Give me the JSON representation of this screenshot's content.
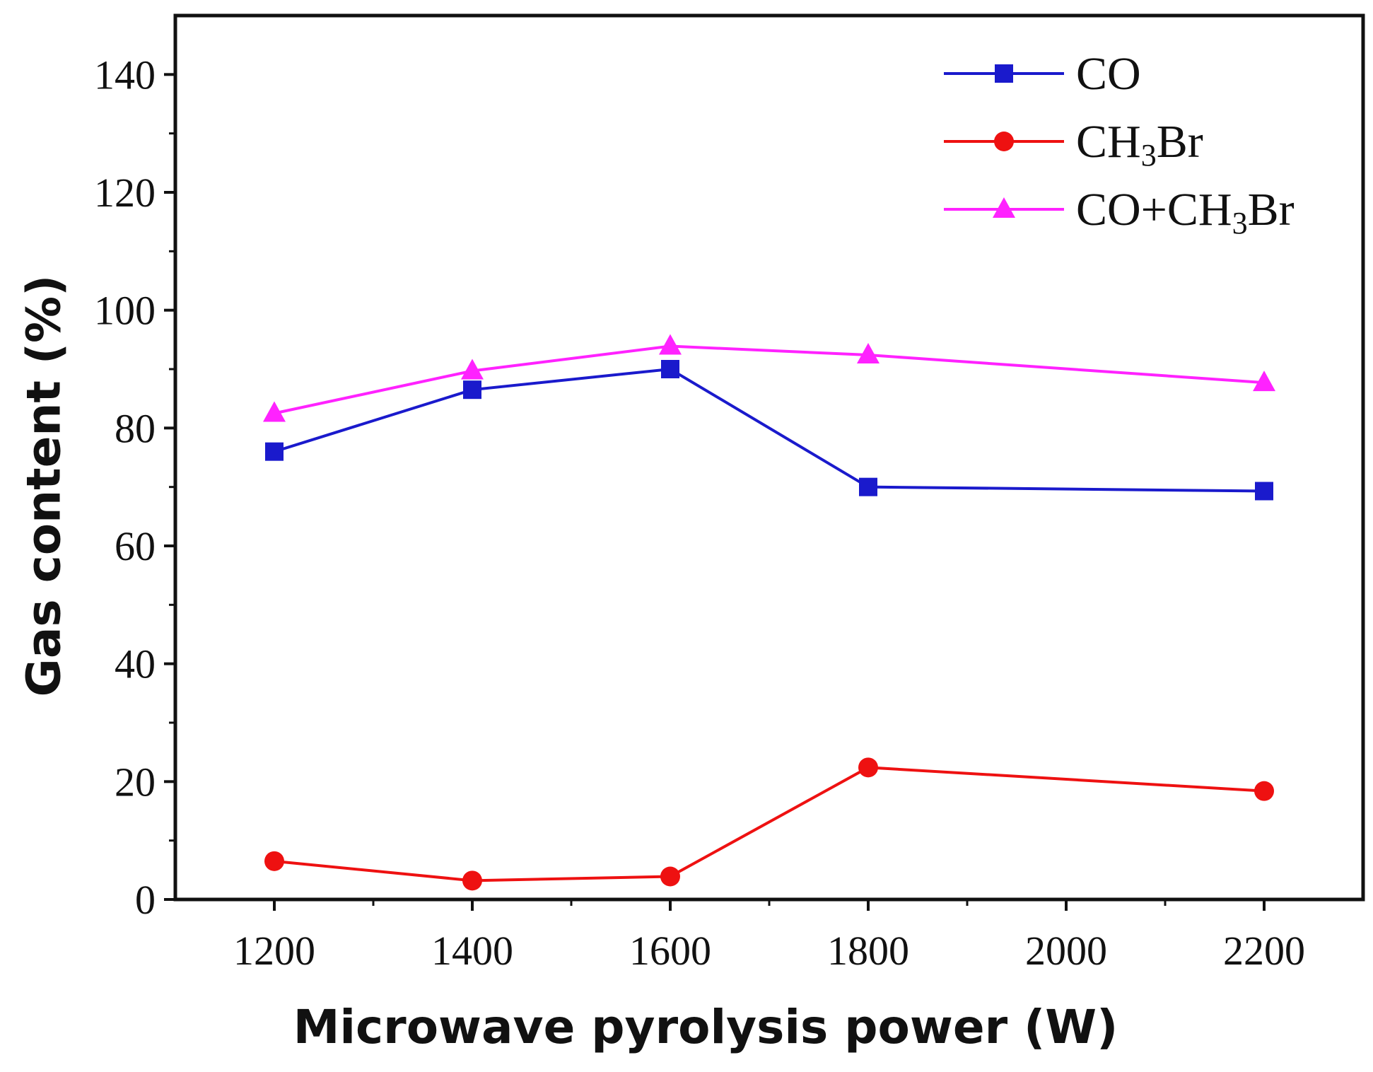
{
  "chart_data": {
    "type": "line",
    "xlabel": "Microwave pyrolysis power (W)",
    "ylabel": "Gas content (%)",
    "xlim": [
      1100,
      2300
    ],
    "ylim": [
      0,
      150
    ],
    "x_ticks": [
      1200,
      1400,
      1600,
      1800,
      2000,
      2200
    ],
    "y_ticks": [
      0,
      20,
      40,
      60,
      80,
      100,
      120,
      140
    ],
    "grid": false,
    "legend_position": "top-right",
    "series": [
      {
        "name": "CO",
        "name_parts": [
          {
            "text": "CO",
            "sub": false
          }
        ],
        "color": "#1a1acc",
        "marker": "square",
        "x": [
          1200,
          1400,
          1600,
          1800,
          2200
        ],
        "y": [
          76,
          86.5,
          90,
          70,
          69.3
        ]
      },
      {
        "name": "CH3Br",
        "name_parts": [
          {
            "text": "CH",
            "sub": false
          },
          {
            "text": "3",
            "sub": true
          },
          {
            "text": "Br",
            "sub": false
          }
        ],
        "color": "#ee1111",
        "marker": "circle",
        "x": [
          1200,
          1400,
          1600,
          1800,
          2200
        ],
        "y": [
          6.5,
          3.2,
          3.9,
          22.4,
          18.4
        ]
      },
      {
        "name": "CO+CH3Br",
        "name_parts": [
          {
            "text": "CO+CH",
            "sub": false
          },
          {
            "text": "3",
            "sub": true
          },
          {
            "text": "Br",
            "sub": false
          }
        ],
        "color": "#ff22ff",
        "marker": "triangle",
        "x": [
          1200,
          1400,
          1600,
          1800,
          2200
        ],
        "y": [
          82.5,
          89.7,
          93.9,
          92.4,
          87.7
        ]
      }
    ]
  }
}
